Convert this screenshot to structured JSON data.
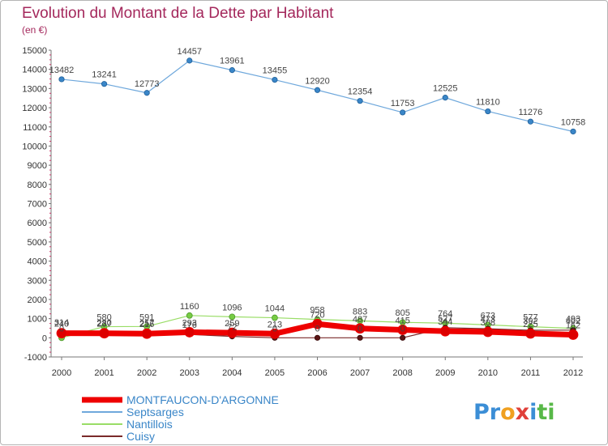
{
  "title": "Evolution du Montant de la Dette par Habitant",
  "unit_label": "(en €)",
  "logo_text": "Proxiti",
  "chart_data": {
    "type": "line",
    "title": "Evolution du Montant de la Dette par Habitant",
    "ylabel": "(en €)",
    "xlabel": "",
    "x": [
      "2000",
      "2001",
      "2002",
      "2003",
      "2004",
      "2005",
      "2006",
      "2007",
      "2008",
      "2009",
      "2010",
      "2011",
      "2012"
    ],
    "ylim": [
      -1000,
      15000
    ],
    "yticks": [
      -1000,
      0,
      1000,
      2000,
      3000,
      4000,
      5000,
      6000,
      7000,
      8000,
      9000,
      10000,
      11000,
      12000,
      13000,
      14000,
      15000
    ],
    "grid": false,
    "legend_position": "bottom-left",
    "series": [
      {
        "name": "MONTFAUCON-D'ARGONNE",
        "color": "#ee0000",
        "values": [
          240,
          237,
          216,
          293,
          259,
          213,
          720,
          487,
          415,
          344,
          308,
          225,
          162
        ],
        "labels": [
          "240",
          "237",
          "216",
          "293",
          "259",
          "213",
          "720",
          "487",
          "415",
          "344",
          "308",
          "225",
          "162"
        ]
      },
      {
        "name": "Septsarges",
        "color": "#5b9bd5",
        "values": [
          13482,
          13241,
          12773,
          14457,
          13961,
          13455,
          12920,
          12354,
          11753,
          12525,
          11810,
          11276,
          10758
        ],
        "labels": [
          "13482",
          "13241",
          "12773",
          "14457",
          "13961",
          "13455",
          "12920",
          "12354",
          "11753",
          "12525",
          "11810",
          "11276",
          "10758"
        ]
      },
      {
        "name": "Nantillois",
        "color": "#99dd66",
        "values": [
          0,
          580,
          591,
          1160,
          1096,
          1044,
          958,
          883,
          805,
          764,
          673,
          577,
          493
        ],
        "labels": [
          "0",
          "580",
          "591",
          "1160",
          "1096",
          "1044",
          "958",
          "883",
          "805",
          "764",
          "673",
          "577",
          "493"
        ]
      },
      {
        "name": "Cuisy",
        "color": "#6b1d1d",
        "values": [
          314,
          280,
          257,
          176,
          72,
          0,
          0,
          0,
          0,
          527,
          473,
          392,
          402
        ],
        "labels": [
          "314",
          "280",
          "257",
          "176",
          "72",
          "0",
          "0",
          "0",
          "0",
          "527",
          "473",
          "392",
          "402"
        ]
      }
    ]
  }
}
